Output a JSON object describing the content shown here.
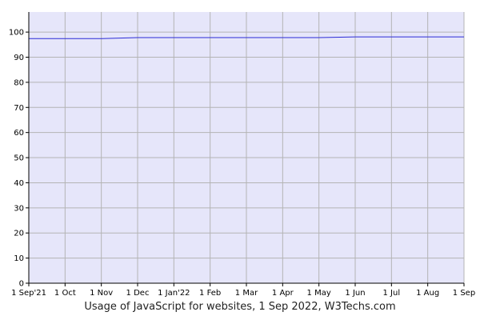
{
  "chart_data": {
    "type": "line",
    "title": "Usage of JavaScript for websites, 1 Sep 2022, W3Techs.com",
    "xlabel": "",
    "ylabel": "",
    "ylim": [
      0,
      108
    ],
    "yticks": [
      0,
      10,
      20,
      30,
      40,
      50,
      60,
      70,
      80,
      90,
      100
    ],
    "x": [
      "1 Sep'21",
      "1 Oct",
      "1 Nov",
      "1 Dec",
      "1 Jan'22",
      "1 Feb",
      "1 Mar",
      "1 Apr",
      "1 May",
      "1 Jun",
      "1 Jul",
      "1 Aug",
      "1 Sep"
    ],
    "series": [
      {
        "values": [
          97.4,
          97.4,
          97.4,
          97.8,
          97.8,
          97.8,
          97.8,
          97.8,
          97.8,
          98.1,
          98.1,
          98.1,
          98.1
        ]
      }
    ],
    "grid": true,
    "colors": {
      "plot_bg": "#e6e6fa",
      "line": "#2b2bd6",
      "grid": "#b4b4b4",
      "axis": "#000000"
    }
  }
}
